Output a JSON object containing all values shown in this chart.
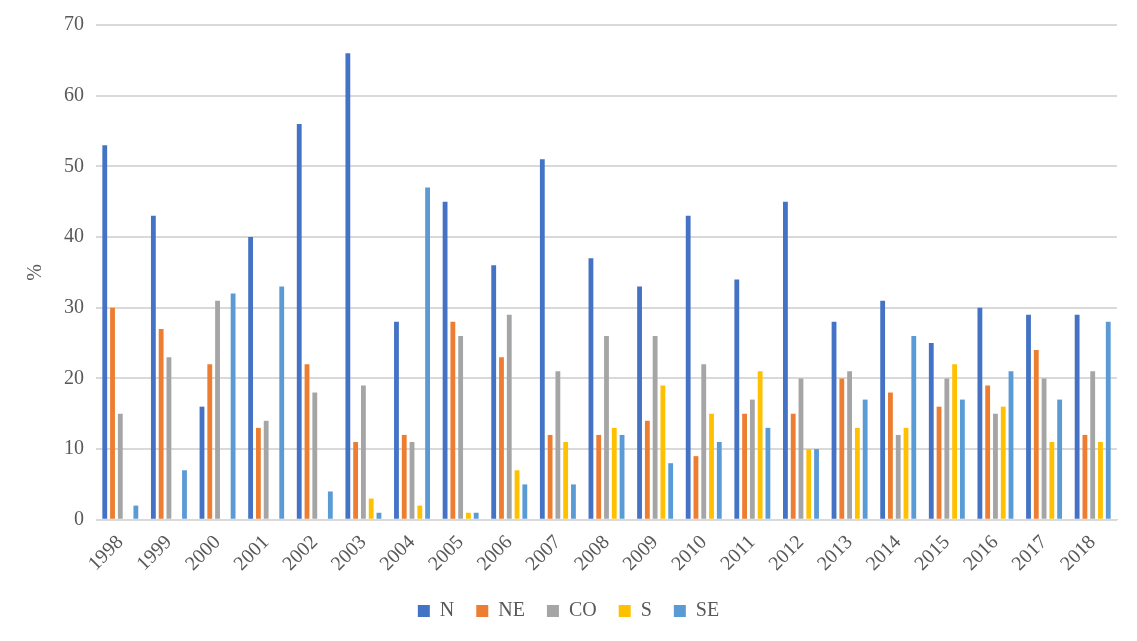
{
  "chart_data": {
    "type": "bar",
    "ylabel": "%",
    "categories": [
      "1998",
      "1999",
      "2000",
      "2001",
      "2002",
      "2003",
      "2004",
      "2005",
      "2006",
      "2007",
      "2008",
      "2009",
      "2010",
      "2011",
      "2012",
      "2013",
      "2014",
      "2015",
      "2016",
      "2017",
      "2018"
    ],
    "series": [
      {
        "name": "N",
        "color": "#4472c4",
        "values": [
          53,
          43,
          16,
          40,
          56,
          66,
          28,
          45,
          36,
          51,
          37,
          33,
          43,
          34,
          45,
          28,
          31,
          25,
          30,
          29,
          29
        ]
      },
      {
        "name": "NE",
        "color": "#ed7d31",
        "values": [
          30,
          27,
          22,
          13,
          22,
          11,
          12,
          28,
          23,
          12,
          12,
          14,
          9,
          15,
          15,
          20,
          18,
          16,
          19,
          24,
          12
        ]
      },
      {
        "name": "CO",
        "color": "#a5a5a5",
        "values": [
          15,
          23,
          31,
          14,
          18,
          19,
          11,
          26,
          29,
          21,
          26,
          26,
          22,
          17,
          20,
          21,
          12,
          20,
          15,
          20,
          21
        ]
      },
      {
        "name": "S",
        "color": "#ffc000",
        "values": [
          0,
          0,
          0,
          0,
          0,
          3,
          2,
          1,
          7,
          11,
          13,
          19,
          15,
          21,
          10,
          13,
          13,
          22,
          16,
          11,
          11
        ]
      },
      {
        "name": "SE",
        "color": "#5b9bd5",
        "values": [
          2,
          7,
          32,
          33,
          4,
          1,
          47,
          1,
          5,
          5,
          12,
          8,
          11,
          13,
          10,
          17,
          26,
          17,
          21,
          17,
          28
        ]
      }
    ],
    "ylim": [
      0,
      70
    ],
    "yticks": [
      0,
      10,
      20,
      30,
      40,
      50,
      60,
      70
    ],
    "grid": "y",
    "legend": "bottom"
  }
}
